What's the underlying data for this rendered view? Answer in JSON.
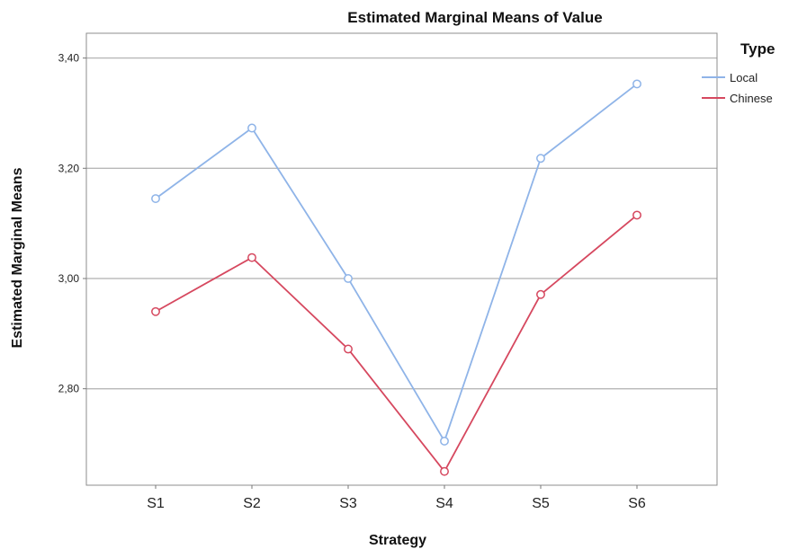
{
  "chart_data": {
    "type": "line",
    "title": "Estimated Marginal Means of Value",
    "xlabel": "Strategy",
    "ylabel": "Estimated Marginal Means",
    "categories": [
      "S1",
      "S2",
      "S3",
      "S4",
      "S5",
      "S6"
    ],
    "ylim": [
      2.625,
      3.445
    ],
    "y_ticks": [
      2.8,
      3.0,
      3.2,
      3.4
    ],
    "y_tick_labels": [
      "2,80",
      "3,00",
      "3,20",
      "3,40"
    ],
    "grid": "horizontal",
    "legend": {
      "title": "Type",
      "placement": "top-right"
    },
    "series": [
      {
        "name": "Local",
        "color": "#8fb4e8",
        "values": [
          3.145,
          3.273,
          3.0,
          2.705,
          3.218,
          3.353
        ]
      },
      {
        "name": "Chinese",
        "color": "#d6485f",
        "values": [
          2.94,
          3.038,
          2.872,
          2.65,
          2.971,
          3.115
        ]
      }
    ]
  }
}
